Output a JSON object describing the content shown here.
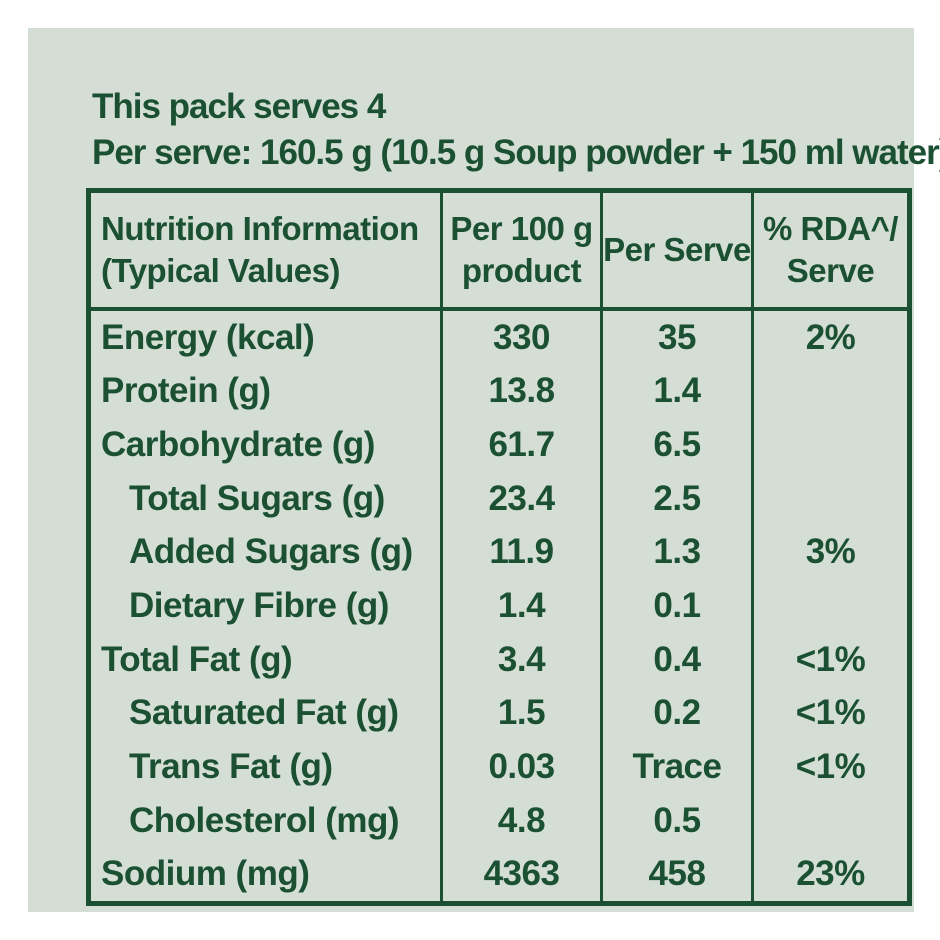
{
  "page": {
    "background": "#ffffff",
    "panel_background": "#d4ded5",
    "ink_color": "#1b5132"
  },
  "intro": {
    "line1": "This pack serves 4",
    "line2": "Per serve: 160.5 g (10.5 g Soup powder + 150 ml water)"
  },
  "table": {
    "headers": {
      "col1": "Nutrition Information\n(Typical Values)",
      "col2": "Per 100 g\nproduct",
      "col3": "Per Serve",
      "col4": "% RDA^/\nServe"
    },
    "rows": [
      {
        "label": "Energy (kcal)",
        "per_100g": "330",
        "per_serve": "35",
        "rda": "2%",
        "indent": false
      },
      {
        "label": "Protein (g)",
        "per_100g": "13.8",
        "per_serve": "1.4",
        "rda": "",
        "indent": false
      },
      {
        "label": "Carbohydrate (g)",
        "per_100g": "61.7",
        "per_serve": "6.5",
        "rda": "",
        "indent": false
      },
      {
        "label": "Total Sugars (g)",
        "per_100g": "23.4",
        "per_serve": "2.5",
        "rda": "",
        "indent": true
      },
      {
        "label": "Added Sugars (g)",
        "per_100g": "11.9",
        "per_serve": "1.3",
        "rda": "3%",
        "indent": true
      },
      {
        "label": "Dietary Fibre (g)",
        "per_100g": "1.4",
        "per_serve": "0.1",
        "rda": "",
        "indent": true
      },
      {
        "label": "Total Fat (g)",
        "per_100g": "3.4",
        "per_serve": "0.4",
        "rda": "<1%",
        "indent": false
      },
      {
        "label": "Saturated Fat (g)",
        "per_100g": "1.5",
        "per_serve": "0.2",
        "rda": "<1%",
        "indent": true
      },
      {
        "label": "Trans Fat (g)",
        "per_100g": "0.03",
        "per_serve": "Trace",
        "rda": "<1%",
        "indent": true
      },
      {
        "label": "Cholesterol (mg)",
        "per_100g": "4.8",
        "per_serve": "0.5",
        "rda": "",
        "indent": true
      },
      {
        "label": "Sodium (mg)",
        "per_100g": "4363",
        "per_serve": "458",
        "rda": "23%",
        "indent": false
      }
    ]
  }
}
